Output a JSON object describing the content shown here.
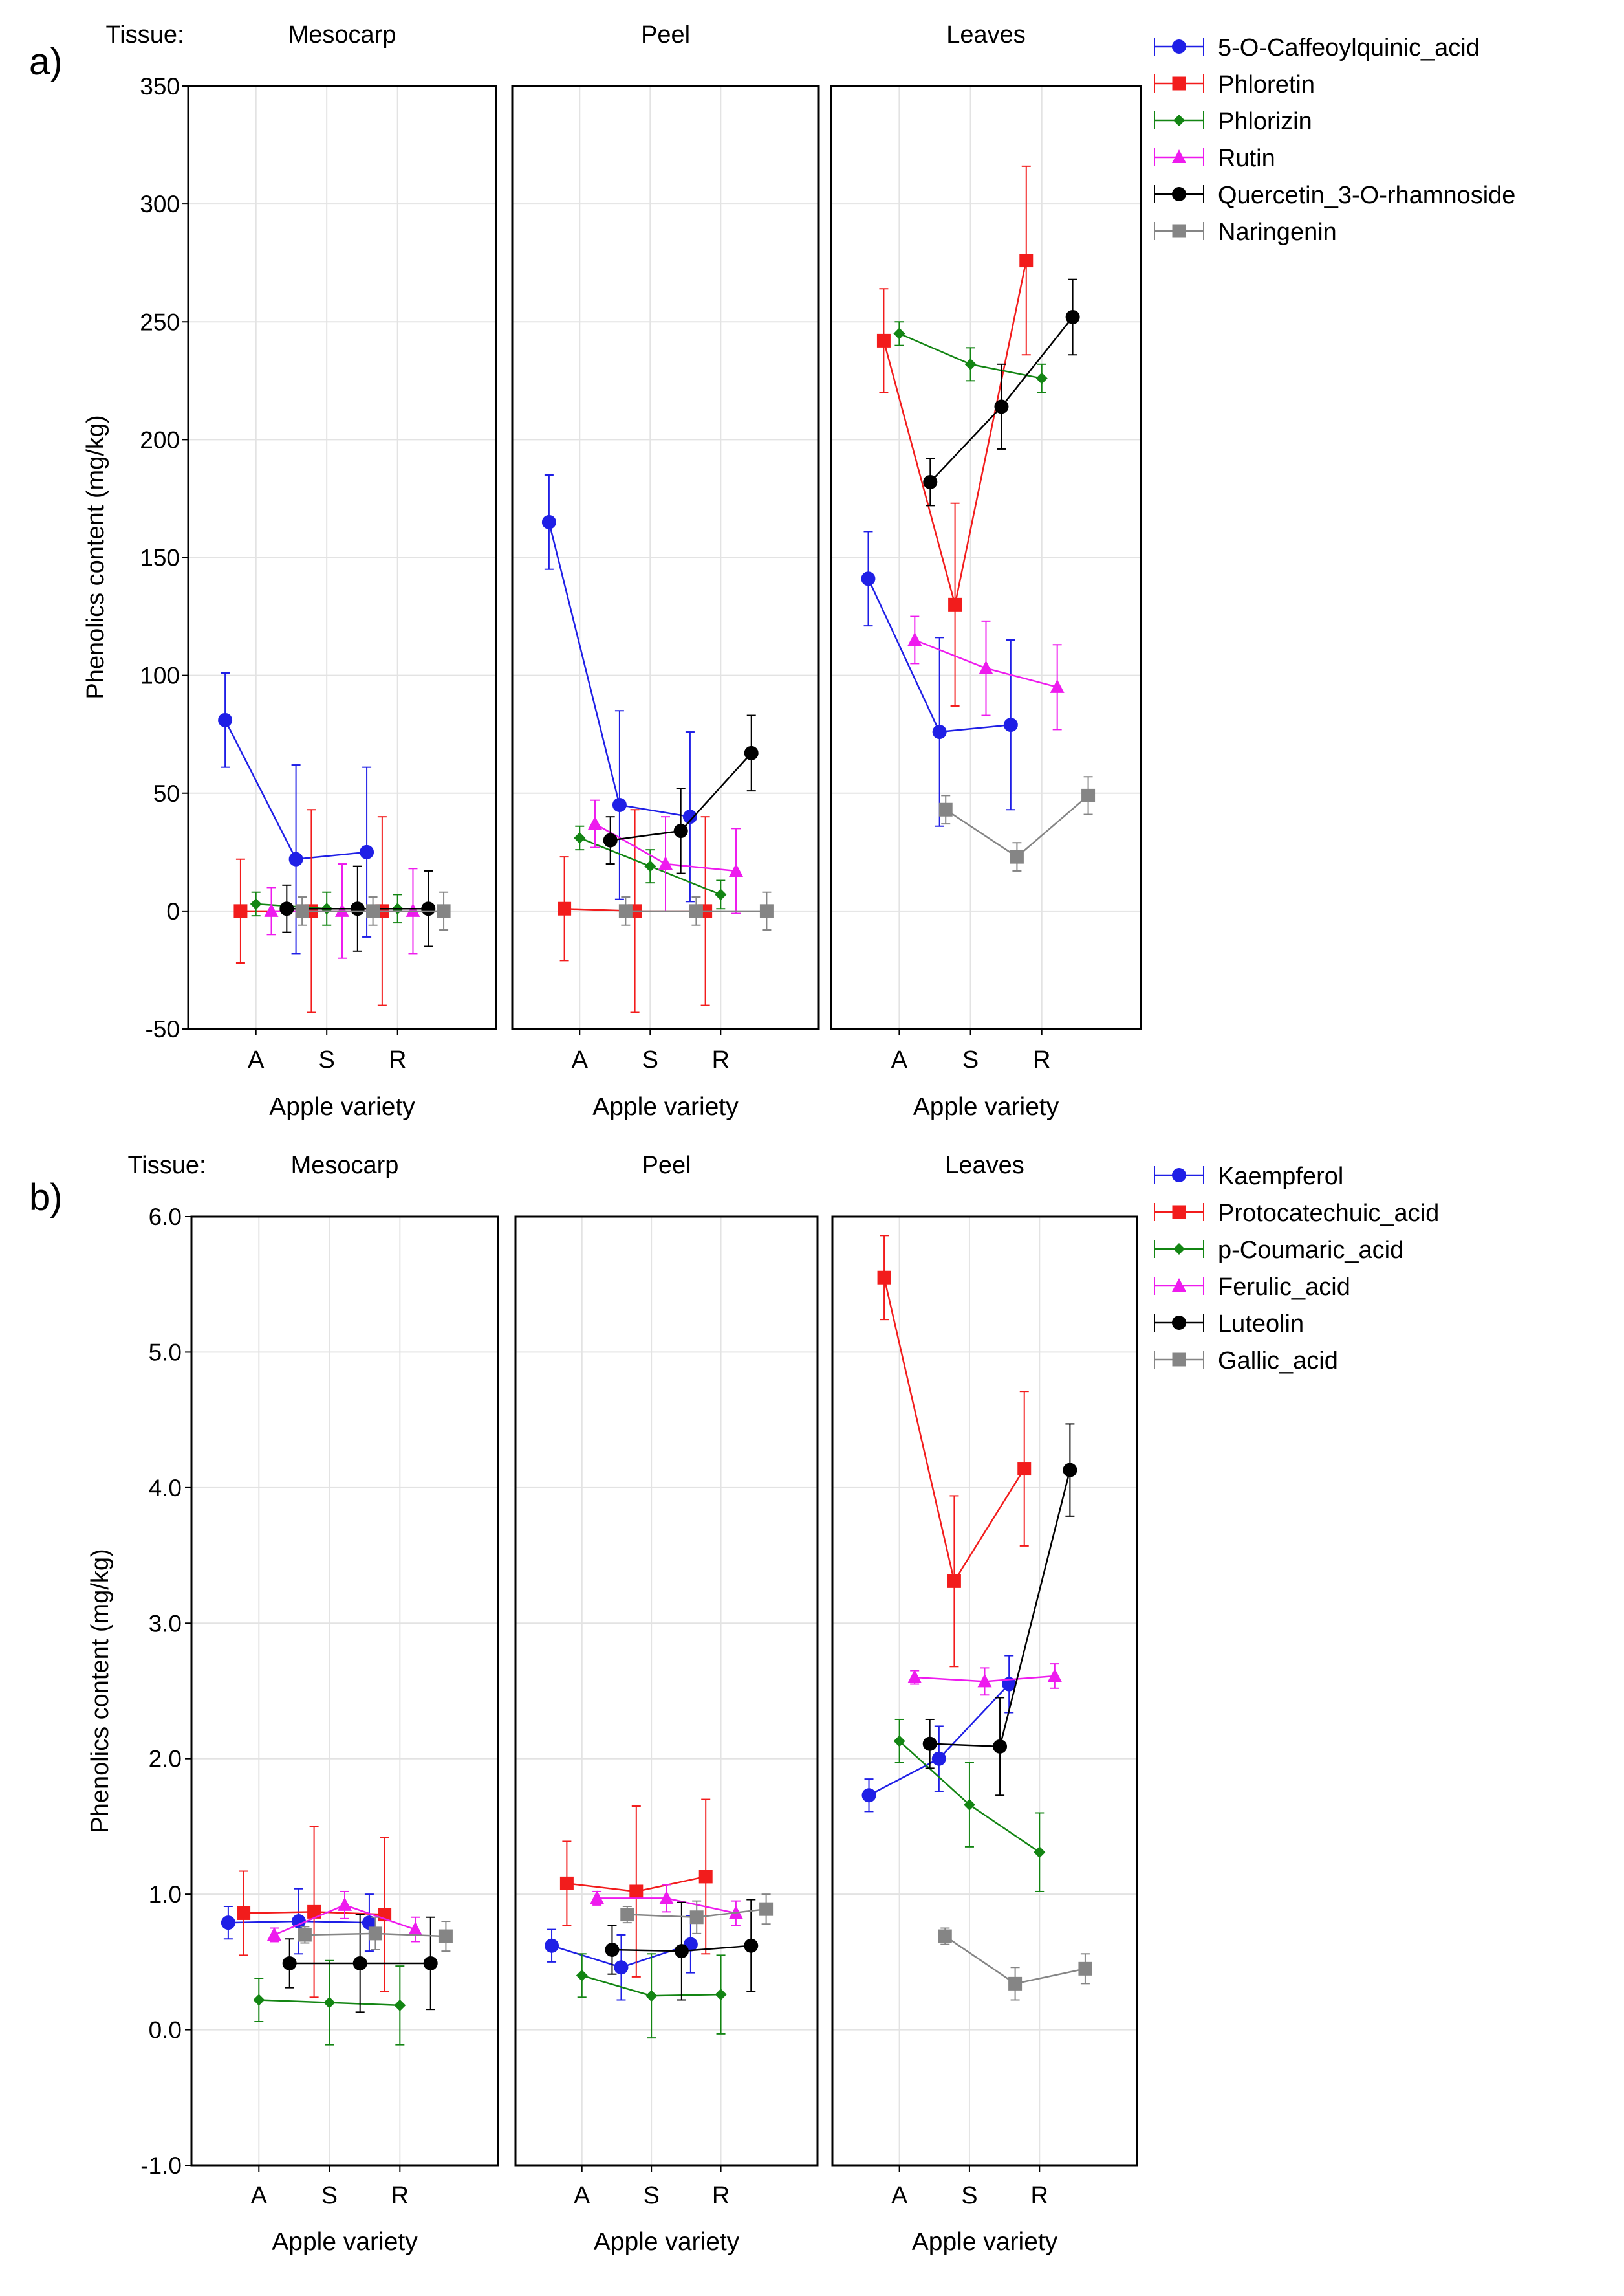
{
  "chart_data": [
    {
      "type": "line",
      "panel_label": "a)",
      "tissue_label": "Tissue:",
      "xlabel": "Apple variety",
      "ylabel": "Phenolics content (mg/kg)",
      "ylim": [
        -50,
        350
      ],
      "yticks": [
        -50,
        0,
        50,
        100,
        150,
        200,
        250,
        300,
        350
      ],
      "ytick_labels": [
        "-50",
        "0",
        "50",
        "100",
        "150",
        "200",
        "250",
        "300",
        "350"
      ],
      "grid": true,
      "legend_position": "right",
      "categories": [
        "A",
        "S",
        "R"
      ],
      "facets": [
        {
          "name": "Mesocarp",
          "series": [
            {
              "name": "5-O-Caffeoylquinic_acid",
              "values": [
                81,
                22,
                25
              ],
              "errors": [
                20,
                40,
                36
              ]
            },
            {
              "name": "Phloretin",
              "values": [
                0,
                0,
                0
              ],
              "errors": [
                22,
                43,
                40
              ]
            },
            {
              "name": "Phlorizin",
              "values": [
                3,
                1,
                1
              ],
              "errors": [
                5,
                7,
                6
              ]
            },
            {
              "name": "Rutin",
              "values": [
                0,
                0,
                0
              ],
              "errors": [
                10,
                20,
                18
              ]
            },
            {
              "name": "Quercetin_3-O-rhamnoside",
              "values": [
                1,
                1,
                1
              ],
              "errors": [
                10,
                18,
                16
              ]
            },
            {
              "name": "Naringenin",
              "values": [
                0,
                0,
                0
              ],
              "errors": [
                6,
                6,
                8
              ]
            }
          ]
        },
        {
          "name": "Peel",
          "series": [
            {
              "name": "5-O-Caffeoylquinic_acid",
              "values": [
                165,
                45,
                40
              ],
              "errors": [
                20,
                40,
                36
              ]
            },
            {
              "name": "Phloretin",
              "values": [
                1,
                0,
                0
              ],
              "errors": [
                22,
                43,
                40
              ]
            },
            {
              "name": "Phlorizin",
              "values": [
                31,
                19,
                7
              ],
              "errors": [
                5,
                7,
                6
              ]
            },
            {
              "name": "Rutin",
              "values": [
                37,
                20,
                17
              ],
              "errors": [
                10,
                20,
                18
              ]
            },
            {
              "name": "Quercetin_3-O-rhamnoside",
              "values": [
                30,
                34,
                67
              ],
              "errors": [
                10,
                18,
                16
              ]
            },
            {
              "name": "Naringenin",
              "values": [
                0,
                0,
                0
              ],
              "errors": [
                6,
                6,
                8
              ]
            }
          ]
        },
        {
          "name": "Leaves",
          "series": [
            {
              "name": "5-O-Caffeoylquinic_acid",
              "values": [
                141,
                76,
                79
              ],
              "errors": [
                20,
                40,
                36
              ]
            },
            {
              "name": "Phloretin",
              "values": [
                242,
                130,
                276
              ],
              "errors": [
                22,
                43,
                40
              ]
            },
            {
              "name": "Phlorizin",
              "values": [
                245,
                232,
                226
              ],
              "errors": [
                5,
                7,
                6
              ]
            },
            {
              "name": "Rutin",
              "values": [
                115,
                103,
                95
              ],
              "errors": [
                10,
                20,
                18
              ]
            },
            {
              "name": "Quercetin_3-O-rhamnoside",
              "values": [
                182,
                214,
                252
              ],
              "errors": [
                10,
                18,
                16
              ]
            },
            {
              "name": "Naringenin",
              "values": [
                43,
                23,
                49
              ],
              "errors": [
                6,
                6,
                8
              ]
            }
          ]
        }
      ]
    },
    {
      "type": "line",
      "panel_label": "b)",
      "tissue_label": "Tissue:",
      "xlabel": "Apple variety",
      "ylabel": "Phenolics content (mg/kg)",
      "ylim": [
        -1,
        6
      ],
      "yticks": [
        -1,
        0,
        1,
        2,
        3,
        4,
        5,
        6
      ],
      "ytick_labels": [
        "-1.0",
        "0.0",
        "1.0",
        "2.0",
        "3.0",
        "4.0",
        "5.0",
        "6.0"
      ],
      "grid": true,
      "legend_position": "right",
      "categories": [
        "A",
        "S",
        "R"
      ],
      "facets": [
        {
          "name": "Mesocarp",
          "series": [
            {
              "name": "Kaempferol",
              "values": [
                0.79,
                0.8,
                0.79
              ],
              "errors": [
                0.12,
                0.24,
                0.21
              ]
            },
            {
              "name": "Protocatechuic_acid",
              "values": [
                0.86,
                0.87,
                0.85
              ],
              "errors": [
                0.31,
                0.63,
                0.57
              ]
            },
            {
              "name": "p-Coumaric_acid",
              "values": [
                0.22,
                0.2,
                0.18
              ],
              "errors": [
                0.16,
                0.31,
                0.29
              ]
            },
            {
              "name": "Ferulic_acid",
              "values": [
                0.7,
                0.92,
                0.74
              ],
              "errors": [
                0.05,
                0.1,
                0.09
              ]
            },
            {
              "name": "Luteolin",
              "values": [
                0.49,
                0.49,
                0.49
              ],
              "errors": [
                0.18,
                0.36,
                0.34
              ]
            },
            {
              "name": "Gallic_acid",
              "values": [
                0.7,
                0.71,
                0.69
              ],
              "errors": [
                0.06,
                0.12,
                0.11
              ]
            }
          ]
        },
        {
          "name": "Peel",
          "series": [
            {
              "name": "Kaempferol",
              "values": [
                0.62,
                0.46,
                0.63
              ],
              "errors": [
                0.12,
                0.24,
                0.21
              ]
            },
            {
              "name": "Protocatechuic_acid",
              "values": [
                1.08,
                1.02,
                1.13
              ],
              "errors": [
                0.31,
                0.63,
                0.57
              ]
            },
            {
              "name": "p-Coumaric_acid",
              "values": [
                0.4,
                0.25,
                0.26
              ],
              "errors": [
                0.16,
                0.31,
                0.29
              ]
            },
            {
              "name": "Ferulic_acid",
              "values": [
                0.97,
                0.97,
                0.86
              ],
              "errors": [
                0.05,
                0.1,
                0.09
              ]
            },
            {
              "name": "Luteolin",
              "values": [
                0.59,
                0.58,
                0.62
              ],
              "errors": [
                0.18,
                0.36,
                0.34
              ]
            },
            {
              "name": "Gallic_acid",
              "values": [
                0.85,
                0.83,
                0.89
              ],
              "errors": [
                0.06,
                0.12,
                0.11
              ]
            }
          ]
        },
        {
          "name": "Leaves",
          "series": [
            {
              "name": "Kaempferol",
              "values": [
                1.73,
                2.0,
                2.55
              ],
              "errors": [
                0.12,
                0.24,
                0.21
              ]
            },
            {
              "name": "Protocatechuic_acid",
              "values": [
                5.55,
                3.31,
                4.14
              ],
              "errors": [
                0.31,
                0.63,
                0.57
              ]
            },
            {
              "name": "p-Coumaric_acid",
              "values": [
                2.13,
                1.66,
                1.31
              ],
              "errors": [
                0.16,
                0.31,
                0.29
              ]
            },
            {
              "name": "Ferulic_acid",
              "values": [
                2.6,
                2.57,
                2.61
              ],
              "errors": [
                0.05,
                0.1,
                0.09
              ]
            },
            {
              "name": "Luteolin",
              "values": [
                2.11,
                2.09,
                4.13
              ],
              "errors": [
                0.18,
                0.36,
                0.34
              ]
            },
            {
              "name": "Gallic_acid",
              "values": [
                0.69,
                0.34,
                0.45
              ],
              "errors": [
                0.06,
                0.12,
                0.11
              ]
            }
          ]
        }
      ]
    }
  ],
  "legends": [
    [
      {
        "name": "5-O-Caffeoylquinic_acid",
        "color": "#1f1fe6",
        "marker": "circle"
      },
      {
        "name": "Phloretin",
        "color": "#f21c1c",
        "marker": "square"
      },
      {
        "name": "Phlorizin",
        "color": "#138513",
        "marker": "diamond"
      },
      {
        "name": "Rutin",
        "color": "#ee1bee",
        "marker": "triangle"
      },
      {
        "name": "Quercetin_3-O-rhamnoside",
        "color": "#000000",
        "marker": "circle"
      },
      {
        "name": "Naringenin",
        "color": "#858585",
        "marker": "square"
      }
    ],
    [
      {
        "name": "Kaempferol",
        "color": "#1f1fe6",
        "marker": "circle"
      },
      {
        "name": "Protocatechuic_acid",
        "color": "#f21c1c",
        "marker": "square"
      },
      {
        "name": "p-Coumaric_acid",
        "color": "#138513",
        "marker": "diamond"
      },
      {
        "name": "Ferulic_acid",
        "color": "#ee1bee",
        "marker": "triangle"
      },
      {
        "name": "Luteolin",
        "color": "#000000",
        "marker": "circle"
      },
      {
        "name": "Gallic_acid",
        "color": "#858585",
        "marker": "square"
      }
    ]
  ]
}
